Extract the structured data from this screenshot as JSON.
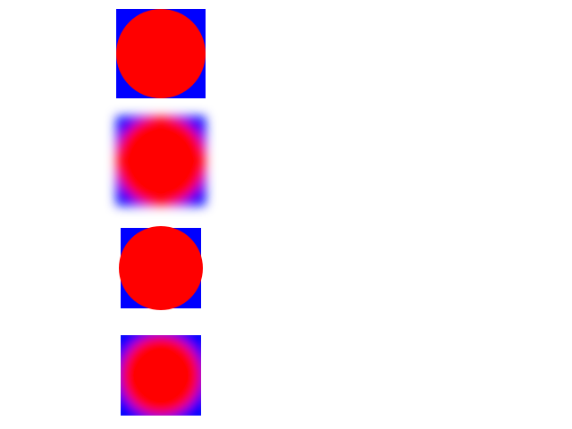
{
  "colors": {
    "background": "#ffffff",
    "square": "#0000ff",
    "circle": "#ff0000"
  },
  "tiles": [
    {
      "name": "crisp-large",
      "blurred": false,
      "clipped": false
    },
    {
      "name": "blurred-large",
      "blurred": true,
      "clipped": false
    },
    {
      "name": "crisp-small",
      "blurred": false,
      "clipped": false
    },
    {
      "name": "blurred-small-clipped",
      "blurred": true,
      "clipped": true
    }
  ]
}
